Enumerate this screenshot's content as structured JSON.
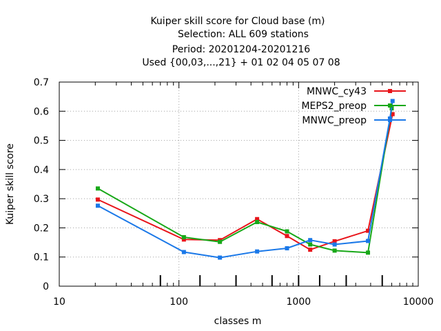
{
  "chart_data": {
    "type": "line",
    "title_lines": [
      "Kuiper skill score  for Cloud base (m)",
      "Selection: ALL    609 stations",
      "Period: 20201204-20201216",
      "Used {00,03,...,21} + 01 02 04 05 07 08"
    ],
    "xlabel": "classes m",
    "ylabel": "Kuiper skill score",
    "xscale": "log",
    "xlim": [
      10,
      10000
    ],
    "ylim": [
      0,
      0.7
    ],
    "x_ticks": [
      10,
      100,
      1000,
      10000
    ],
    "x_tick_labels": [
      "10",
      "100",
      "1000",
      "10000"
    ],
    "y_ticks": [
      0,
      0.1,
      0.2,
      0.3,
      0.4,
      0.5,
      0.6,
      0.7
    ],
    "y_tick_labels": [
      "0",
      "0.1",
      "0.2",
      "0.3",
      "0.4",
      "0.5",
      "0.6",
      "0.7"
    ],
    "class_markers": [
      70,
      150,
      300,
      600,
      1000,
      1500,
      2500,
      5000
    ],
    "grid": true,
    "legend_position": "top-right",
    "series": [
      {
        "name": "MNWC_cy43",
        "color": "#e8141a",
        "x": [
          21,
          110,
          220,
          450,
          800,
          1250,
          2000,
          3800,
          6100
        ],
        "y": [
          0.297,
          0.16,
          0.158,
          0.23,
          0.172,
          0.125,
          0.154,
          0.19,
          0.59
        ]
      },
      {
        "name": "MEPS2_preop",
        "color": "#18a818",
        "x": [
          21,
          110,
          220,
          450,
          800,
          1250,
          2000,
          3800,
          6000
        ],
        "y": [
          0.335,
          0.168,
          0.152,
          0.22,
          0.188,
          0.143,
          0.122,
          0.115,
          0.61
        ]
      },
      {
        "name": "MNWC_preop",
        "color": "#1a78e8",
        "x": [
          21,
          110,
          220,
          450,
          800,
          1250,
          2000,
          3800,
          5800,
          6100
        ],
        "y": [
          0.276,
          0.117,
          0.098,
          0.119,
          0.13,
          0.158,
          0.143,
          0.155,
          0.575,
          0.635
        ]
      }
    ]
  }
}
